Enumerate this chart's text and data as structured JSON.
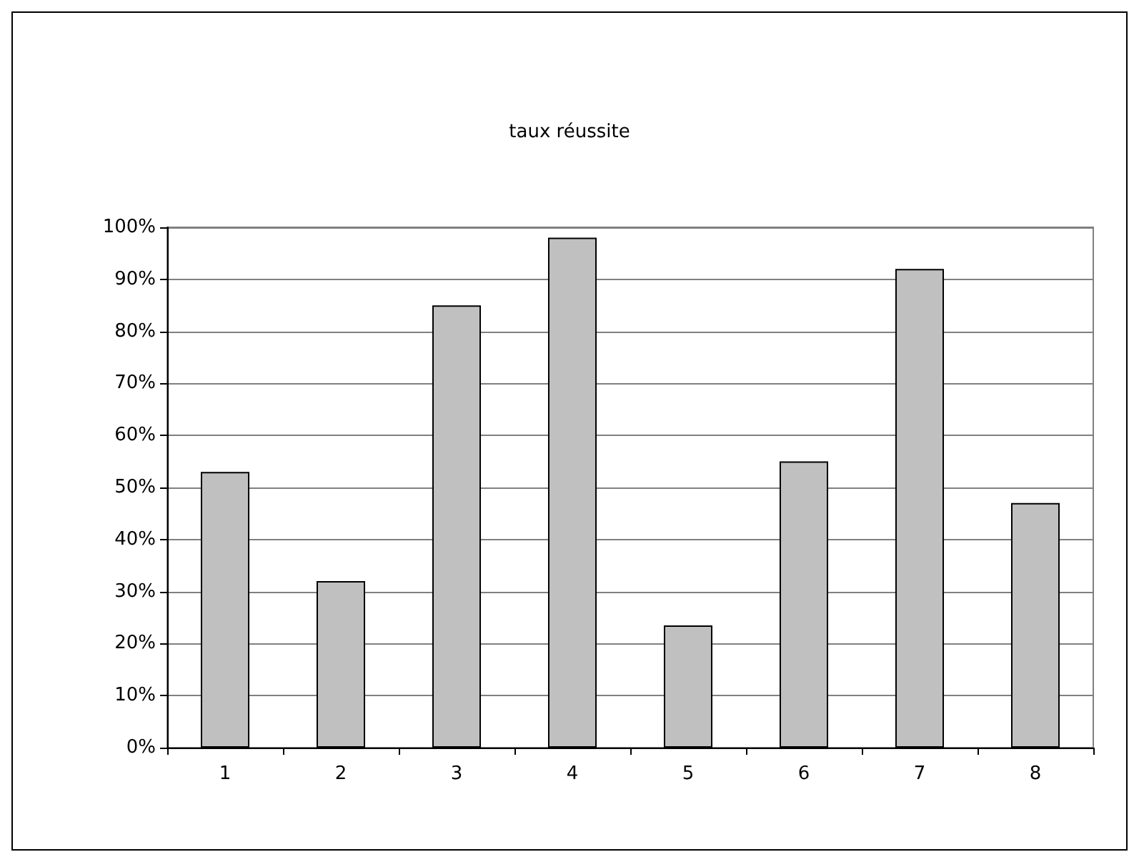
{
  "chart_data": {
    "type": "bar",
    "title": "taux réussite",
    "categories": [
      "1",
      "2",
      "3",
      "4",
      "5",
      "6",
      "7",
      "8"
    ],
    "values": [
      53,
      32,
      85,
      98,
      23.5,
      55,
      92,
      47
    ],
    "color": "#c0c0c0",
    "ylim": [
      0,
      100
    ],
    "yticks": [
      {
        "value": 0,
        "label": "0%"
      },
      {
        "value": 10,
        "label": "10%"
      },
      {
        "value": 20,
        "label": "20%"
      },
      {
        "value": 30,
        "label": "30%"
      },
      {
        "value": 40,
        "label": "40%"
      },
      {
        "value": 50,
        "label": "50%"
      },
      {
        "value": 60,
        "label": "60%"
      },
      {
        "value": 70,
        "label": "70%"
      },
      {
        "value": 80,
        "label": "80%"
      },
      {
        "value": 90,
        "label": "90%"
      },
      {
        "value": 100,
        "label": "100%"
      }
    ],
    "grid": "y"
  }
}
